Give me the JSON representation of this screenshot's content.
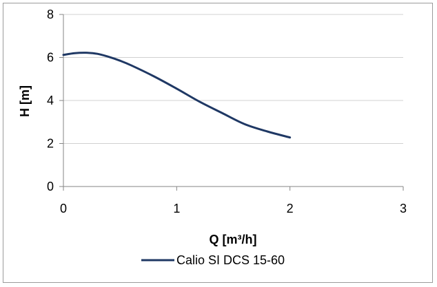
{
  "chart_data": {
    "type": "line",
    "title": "",
    "xlabel": "Q [m³/h]",
    "ylabel": "H [m]",
    "xlim": [
      0,
      3
    ],
    "ylim": [
      0,
      8
    ],
    "xticks": [
      0,
      1,
      2,
      3
    ],
    "yticks": [
      0,
      2,
      4,
      6,
      8
    ],
    "grid": "horizontal",
    "legend": "bottom",
    "series": [
      {
        "name": "Calio SI DCS 15-60",
        "color": "#1f3864",
        "x": [
          0,
          0.1,
          0.2,
          0.3,
          0.4,
          0.5,
          0.6,
          0.8,
          1.0,
          1.2,
          1.4,
          1.6,
          1.8,
          2.0
        ],
        "y": [
          6.12,
          6.2,
          6.22,
          6.17,
          6.03,
          5.85,
          5.63,
          5.12,
          4.55,
          3.95,
          3.42,
          2.9,
          2.56,
          2.28
        ]
      }
    ]
  }
}
